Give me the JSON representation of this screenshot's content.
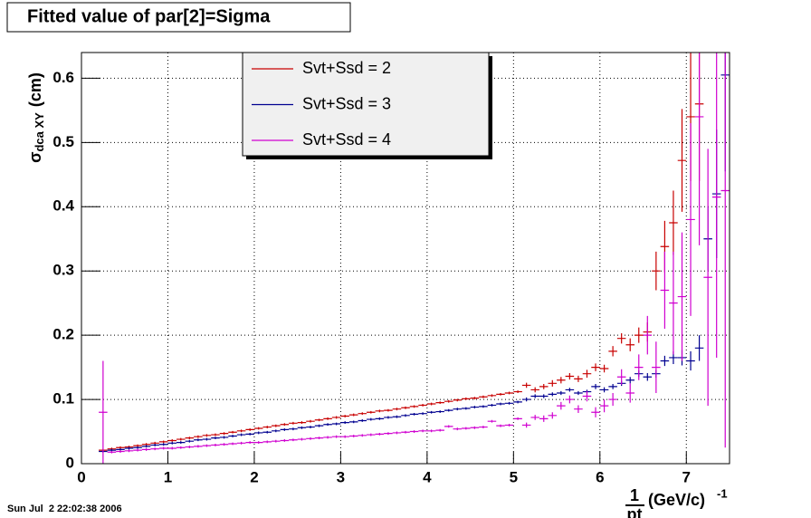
{
  "chart_data": {
    "type": "errorbar",
    "title": "Fitted value of par[2]=Sigma",
    "timestamp": "Sun Jul  2 22:02:38 2006",
    "y_label": {
      "symbol": "σ",
      "subscript": "dca XY",
      "unit": "(cm)"
    },
    "x_label": {
      "numerator": "1",
      "denominator": "pt",
      "unit": "(GeV/c)",
      "exponent": "-1"
    },
    "xlim": [
      0,
      7.5
    ],
    "ylim": [
      0,
      0.64
    ],
    "xticks": [
      0,
      1,
      2,
      3,
      4,
      5,
      6,
      7
    ],
    "yticks": [
      0,
      0.1,
      0.2,
      0.3,
      0.4,
      0.5,
      0.6
    ],
    "grid": true,
    "legend": "top-center",
    "x": [
      0.25,
      0.35,
      0.45,
      0.55,
      0.65,
      0.75,
      0.85,
      0.95,
      1.05,
      1.15,
      1.25,
      1.35,
      1.45,
      1.55,
      1.65,
      1.75,
      1.85,
      1.95,
      2.05,
      2.15,
      2.25,
      2.35,
      2.45,
      2.55,
      2.65,
      2.75,
      2.85,
      2.95,
      3.05,
      3.15,
      3.25,
      3.35,
      3.45,
      3.55,
      3.65,
      3.75,
      3.85,
      3.95,
      4.05,
      4.15,
      4.25,
      4.35,
      4.45,
      4.55,
      4.65,
      4.75,
      4.85,
      4.95,
      5.05,
      5.15,
      5.25,
      5.35,
      5.45,
      5.55,
      5.65,
      5.75,
      5.85,
      5.95,
      6.05,
      6.15,
      6.25,
      6.35,
      6.45,
      6.55,
      6.65,
      6.75,
      6.85,
      6.95,
      7.05,
      7.15,
      7.25,
      7.35,
      7.45
    ],
    "series": [
      {
        "name": "Svt+Ssd = 2",
        "color": "#c80000",
        "values": [
          0.021,
          0.023,
          0.025,
          0.026,
          0.028,
          0.03,
          0.032,
          0.034,
          0.036,
          0.038,
          0.04,
          0.042,
          0.044,
          0.045,
          0.047,
          0.049,
          0.051,
          0.053,
          0.055,
          0.057,
          0.059,
          0.061,
          0.063,
          0.064,
          0.066,
          0.068,
          0.07,
          0.072,
          0.074,
          0.076,
          0.078,
          0.08,
          0.082,
          0.083,
          0.085,
          0.087,
          0.089,
          0.091,
          0.093,
          0.095,
          0.097,
          0.099,
          0.101,
          0.102,
          0.104,
          0.106,
          0.108,
          0.11,
          0.112,
          0.122,
          0.115,
          0.12,
          0.125,
          0.13,
          0.136,
          0.132,
          0.14,
          0.15,
          0.148,
          0.175,
          0.195,
          0.185,
          0.2,
          0.205,
          0.3,
          0.338,
          0.375,
          0.472,
          0.54,
          0.56,
          null,
          null,
          null
        ],
        "errors": [
          0.002,
          0.002,
          0.002,
          0.002,
          0.002,
          0.002,
          0.002,
          0.002,
          0.002,
          0.002,
          0.002,
          0.002,
          0.002,
          0.002,
          0.002,
          0.002,
          0.002,
          0.002,
          0.002,
          0.002,
          0.002,
          0.002,
          0.002,
          0.002,
          0.002,
          0.002,
          0.002,
          0.002,
          0.002,
          0.002,
          0.002,
          0.002,
          0.002,
          0.002,
          0.002,
          0.002,
          0.002,
          0.002,
          0.002,
          0.002,
          0.002,
          0.002,
          0.002,
          0.002,
          0.002,
          0.002,
          0.002,
          0.002,
          0.002,
          0.004,
          0.004,
          0.004,
          0.005,
          0.005,
          0.005,
          0.005,
          0.006,
          0.006,
          0.006,
          0.008,
          0.008,
          0.01,
          0.012,
          0.015,
          0.03,
          0.04,
          0.05,
          0.08,
          0.1,
          0.12,
          null,
          null,
          null
        ]
      },
      {
        "name": "Svt+Ssd = 3",
        "color": "#000090",
        "values": [
          0.019,
          0.021,
          0.022,
          0.024,
          0.025,
          0.027,
          0.029,
          0.03,
          0.032,
          0.033,
          0.035,
          0.037,
          0.038,
          0.04,
          0.041,
          0.043,
          0.045,
          0.046,
          0.048,
          0.049,
          0.051,
          0.053,
          0.054,
          0.056,
          0.057,
          0.059,
          0.061,
          0.062,
          0.064,
          0.065,
          0.067,
          0.069,
          0.07,
          0.072,
          0.073,
          0.075,
          0.077,
          0.078,
          0.08,
          0.081,
          0.083,
          0.085,
          0.086,
          0.088,
          0.089,
          0.091,
          0.093,
          0.094,
          0.096,
          0.1,
          0.105,
          0.105,
          0.108,
          0.11,
          0.115,
          0.11,
          0.112,
          0.12,
          0.115,
          0.12,
          0.125,
          0.13,
          0.14,
          0.135,
          0.14,
          0.16,
          0.165,
          0.165,
          0.16,
          0.18,
          0.35,
          0.42,
          0.605
        ],
        "errors": [
          0.002,
          0.002,
          0.002,
          0.002,
          0.002,
          0.002,
          0.002,
          0.002,
          0.002,
          0.002,
          0.002,
          0.002,
          0.002,
          0.002,
          0.002,
          0.002,
          0.002,
          0.002,
          0.002,
          0.002,
          0.002,
          0.002,
          0.002,
          0.002,
          0.002,
          0.002,
          0.002,
          0.002,
          0.002,
          0.002,
          0.002,
          0.002,
          0.002,
          0.002,
          0.002,
          0.002,
          0.002,
          0.002,
          0.002,
          0.002,
          0.002,
          0.002,
          0.002,
          0.002,
          0.002,
          0.002,
          0.002,
          0.002,
          0.002,
          0.003,
          0.003,
          0.003,
          0.003,
          0.003,
          0.003,
          0.003,
          0.003,
          0.004,
          0.004,
          0.004,
          0.004,
          0.005,
          0.005,
          0.006,
          0.006,
          0.008,
          0.01,
          0.012,
          0.015,
          0.02,
          0.05,
          0.1,
          0.15
        ]
      },
      {
        "name": "Svt+Ssd = 4",
        "color": "#d000d0",
        "values": [
          0.08,
          0.018,
          0.019,
          0.02,
          0.021,
          0.022,
          0.023,
          0.024,
          0.024,
          0.025,
          0.026,
          0.027,
          0.028,
          0.029,
          0.03,
          0.031,
          0.032,
          0.033,
          0.033,
          0.034,
          0.035,
          0.036,
          0.037,
          0.038,
          0.039,
          0.04,
          0.041,
          0.042,
          0.042,
          0.043,
          0.044,
          0.045,
          0.046,
          0.047,
          0.048,
          0.049,
          0.05,
          0.051,
          0.051,
          0.052,
          0.058,
          0.054,
          0.055,
          0.056,
          0.057,
          0.066,
          0.059,
          0.06,
          0.07,
          0.06,
          0.072,
          0.07,
          0.075,
          0.09,
          0.1,
          0.085,
          0.105,
          0.08,
          0.09,
          0.1,
          0.135,
          0.11,
          0.15,
          0.2,
          0.15,
          0.27,
          0.25,
          0.26,
          0.38,
          0.54,
          0.29,
          0.415,
          0.425
        ],
        "errors": [
          0.08,
          0.002,
          0.002,
          0.002,
          0.002,
          0.002,
          0.002,
          0.002,
          0.002,
          0.002,
          0.002,
          0.002,
          0.002,
          0.002,
          0.002,
          0.002,
          0.002,
          0.002,
          0.002,
          0.002,
          0.002,
          0.002,
          0.002,
          0.002,
          0.002,
          0.002,
          0.002,
          0.002,
          0.002,
          0.002,
          0.002,
          0.002,
          0.002,
          0.002,
          0.002,
          0.002,
          0.002,
          0.002,
          0.002,
          0.002,
          0.002,
          0.002,
          0.002,
          0.002,
          0.002,
          0.002,
          0.002,
          0.002,
          0.002,
          0.004,
          0.004,
          0.005,
          0.005,
          0.006,
          0.006,
          0.006,
          0.008,
          0.008,
          0.01,
          0.01,
          0.012,
          0.015,
          0.02,
          0.03,
          0.04,
          0.06,
          0.08,
          0.1,
          0.15,
          0.2,
          0.2,
          0.25,
          0.4
        ]
      }
    ]
  }
}
